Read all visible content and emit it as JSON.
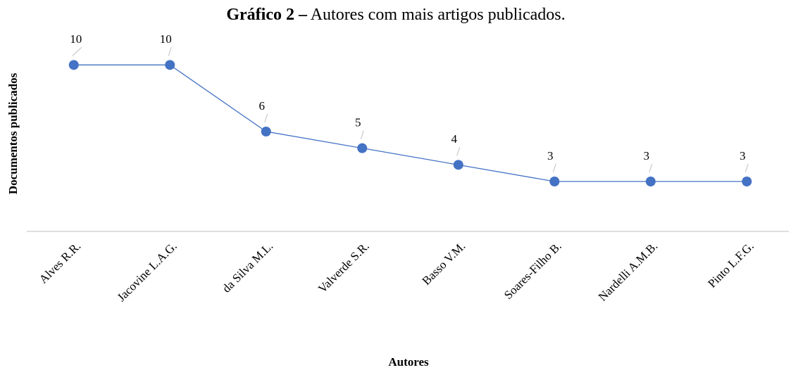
{
  "chart_data": {
    "type": "line",
    "figure_label": "Gráfico 2 –",
    "title": "Autores com mais artigos publicados.",
    "x_label": "Autores",
    "y_label": "Documentos publicados",
    "categories": [
      "Alves R.R.",
      "Jacovine L.A.G.",
      "da Silva M.L.",
      "Valverde S.R.",
      "Basso V.M.",
      "Soares-Filho B.",
      "Nardelli A.M.B.",
      "Pinto L.F.G."
    ],
    "series": [
      {
        "name": "Documentos publicados",
        "color": "#4472c4",
        "values": [
          10,
          10,
          6,
          5,
          4,
          3,
          3,
          3
        ]
      }
    ],
    "ylim": [
      0,
      12
    ]
  }
}
